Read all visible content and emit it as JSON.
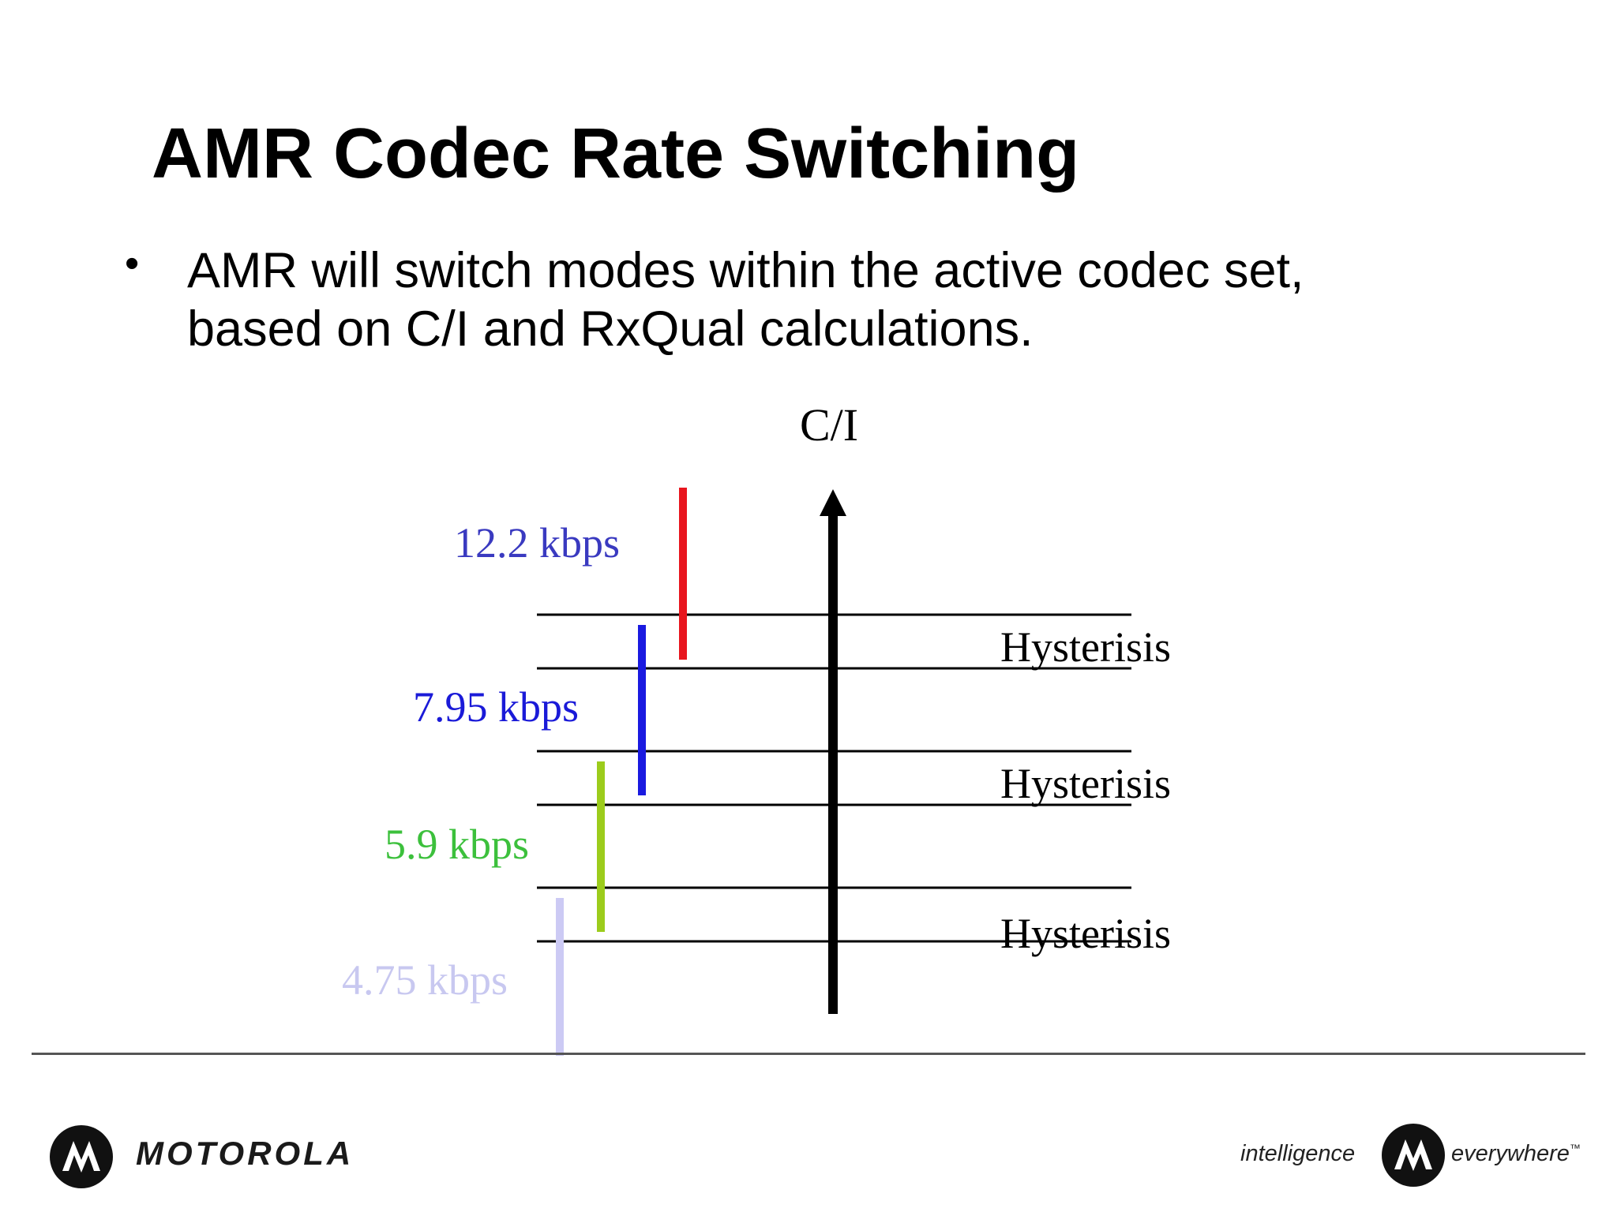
{
  "slide": {
    "title": "AMR Codec Rate Switching",
    "bullets": [
      {
        "marker": "•",
        "lines": [
          "AMR will switch modes within the active codec set,",
          "based on C/I and RxQual calculations."
        ]
      }
    ]
  },
  "diagram": {
    "axis_label": "C/I",
    "rates": [
      {
        "label": "12.2 kbps",
        "color": "#3a3ac0",
        "bar_color": "#e8161e"
      },
      {
        "label": "7.95 kbps",
        "color": "#1a1ad8",
        "bar_color": "#1a1ae0"
      },
      {
        "label": "5.9 kbps",
        "color": "#3cc03c",
        "bar_color": "#9ccc1c"
      },
      {
        "label": "4.75 kbps",
        "color": "#c8c8f0",
        "bar_color": "#cccaf4"
      }
    ],
    "hysteresis_labels": [
      "Hysterisis",
      "Hysterisis",
      "Hysterisis"
    ]
  },
  "footer": {
    "brand": "MOTOROLA",
    "tagline_left": "intelligence",
    "tagline_right": "everywhere",
    "trademark": "™"
  }
}
